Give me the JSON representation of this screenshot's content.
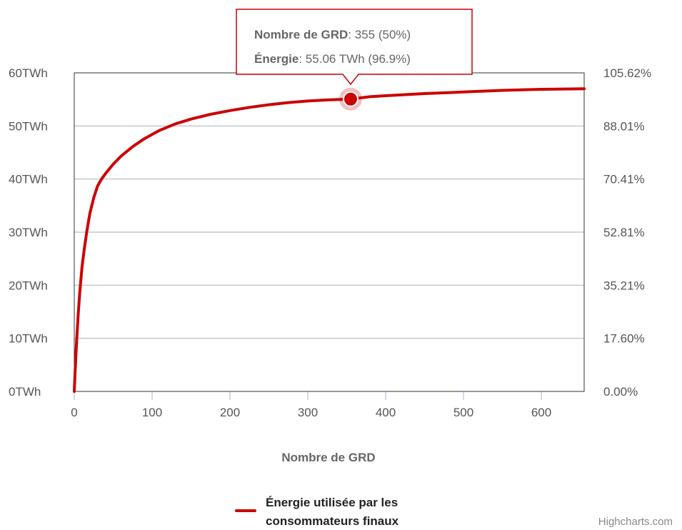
{
  "chart_data": {
    "type": "line",
    "xlabel": "Nombre de GRD",
    "x_ticks": [
      "0",
      "100",
      "200",
      "300",
      "400",
      "500",
      "600"
    ],
    "xlim": [
      0,
      655
    ],
    "y_ticks_left": [
      "0TWh",
      "10TWh",
      "20TWh",
      "30TWh",
      "40TWh",
      "50TWh",
      "60TWh"
    ],
    "ylim": [
      0,
      60
    ],
    "y_ticks_right": [
      "0.00%",
      "17.60%",
      "35.21%",
      "52.81%",
      "70.41%",
      "88.01%",
      "105.62%"
    ],
    "grid": true,
    "legend_position": "bottom",
    "series": [
      {
        "name": "Énergie utilisée par les consommateurs finaux",
        "color": "#cc0000",
        "x": [
          0,
          1,
          2,
          3,
          5,
          7,
          10,
          13,
          16,
          20,
          25,
          30,
          35,
          40,
          50,
          60,
          75,
          90,
          110,
          130,
          150,
          175,
          200,
          225,
          250,
          275,
          300,
          325,
          355,
          380,
          400,
          450,
          500,
          550,
          600,
          655
        ],
        "y": [
          0,
          3.5,
          6.5,
          9.5,
          14.5,
          18.5,
          23.5,
          27,
          30,
          33.5,
          36.5,
          38.7,
          40,
          41,
          42.8,
          44.3,
          46.1,
          47.6,
          49.2,
          50.4,
          51.3,
          52.2,
          52.9,
          53.5,
          54,
          54.4,
          54.7,
          54.9,
          55.06,
          55.5,
          55.7,
          56.1,
          56.4,
          56.7,
          56.9,
          57
        ]
      }
    ],
    "tooltip": {
      "x": 355,
      "y": 55.06,
      "line1_label": "Nombre de GRD",
      "line1_value": ": 355 (50%)",
      "line2_label": "Énergie",
      "line2_value": ": 55.06 TWh (96.9%)"
    },
    "legend": {
      "line1": "Énergie utilisée par les",
      "line2": "consommateurs finaux"
    },
    "credits": "Highcharts.com"
  }
}
